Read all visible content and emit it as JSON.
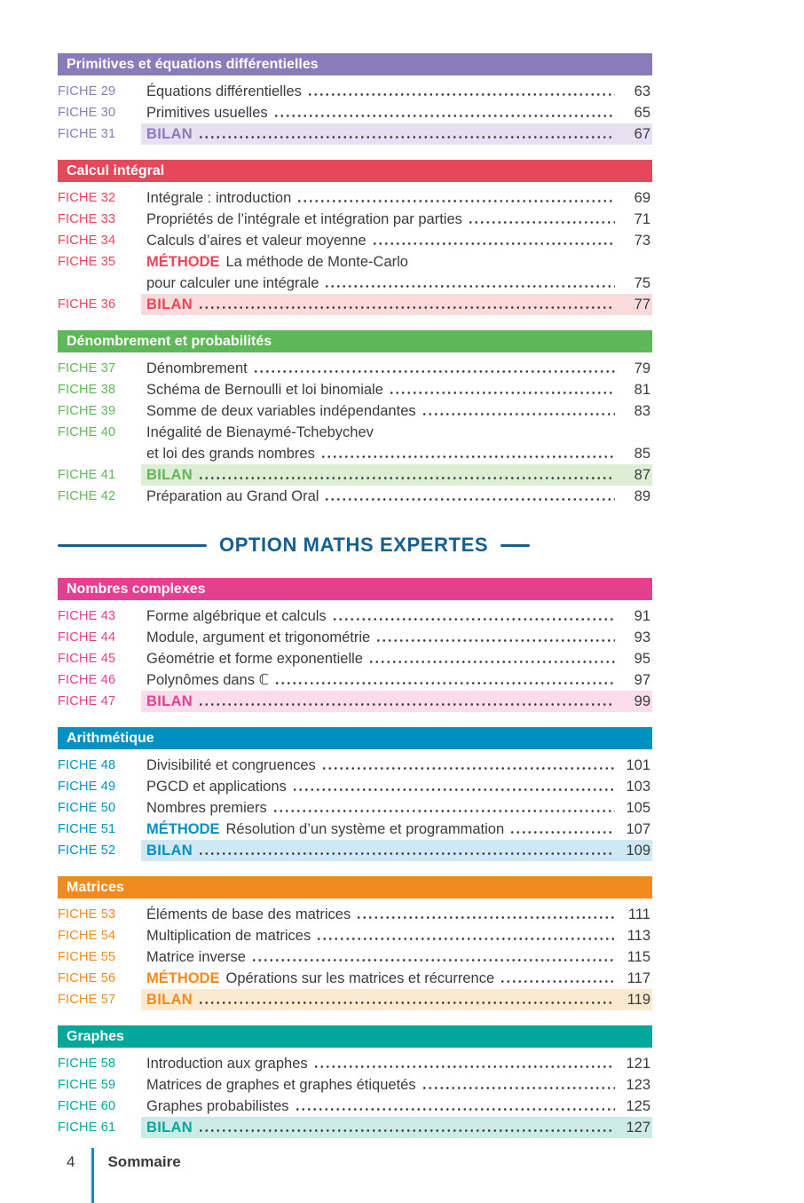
{
  "divider": {
    "title": "OPTION MATHS EXPERTES",
    "color": "#16608f",
    "after_section": 3
  },
  "footer": {
    "page_number": "4",
    "label": "Sommaire",
    "bar_color": "#0090c2"
  },
  "sections": [
    {
      "title": "Primitives et équations différentielles",
      "color": "#8a7bba",
      "tint": "#e6e1f2",
      "items": [
        {
          "fiche": "FICHE 29",
          "lines": [
            "Équations différentielles"
          ],
          "page": "63"
        },
        {
          "fiche": "FICHE 30",
          "lines": [
            "Primitives usuelles"
          ],
          "page": "65"
        },
        {
          "fiche": "FICHE 31",
          "bilan": "BILAN",
          "page": "67"
        }
      ]
    },
    {
      "title": "Calcul intégral",
      "color": "#e6475a",
      "tint": "#fadbdb",
      "items": [
        {
          "fiche": "FICHE 32",
          "lines": [
            "Intégrale : introduction"
          ],
          "page": "69"
        },
        {
          "fiche": "FICHE 33",
          "lines": [
            "Propriétés de l’intégrale et intégration par parties"
          ],
          "page": "71"
        },
        {
          "fiche": "FICHE 34",
          "lines": [
            "Calculs d’aires et valeur moyenne"
          ],
          "page": "73"
        },
        {
          "fiche": "FICHE 35",
          "methode": "MÉTHODE",
          "lines": [
            "La méthode de Monte-Carlo",
            "pour calculer une intégrale"
          ],
          "page": "75"
        },
        {
          "fiche": "FICHE 36",
          "bilan": "BILAN",
          "page": "77"
        }
      ]
    },
    {
      "title": "Dénombrement et probabilités",
      "color": "#5fb857",
      "tint": "#dceed4",
      "items": [
        {
          "fiche": "FICHE 37",
          "lines": [
            "Dénombrement"
          ],
          "page": "79"
        },
        {
          "fiche": "FICHE 38",
          "lines": [
            "Schéma de Bernoulli et loi binomiale"
          ],
          "page": "81"
        },
        {
          "fiche": "FICHE 39",
          "lines": [
            "Somme de deux variables indépendantes"
          ],
          "page": "83"
        },
        {
          "fiche": "FICHE 40",
          "lines": [
            "Inégalité de Bienaymé-Tchebychev",
            "et loi des grands nombres"
          ],
          "page": "85"
        },
        {
          "fiche": "FICHE 41",
          "bilan": "BILAN",
          "page": "87"
        },
        {
          "fiche": "FICHE 42",
          "lines": [
            "Préparation au Grand Oral"
          ],
          "page": "89"
        }
      ]
    },
    {
      "title": "Nombres complexes",
      "color": "#e53f90",
      "tint": "#fadcea",
      "items": [
        {
          "fiche": "FICHE 43",
          "lines": [
            "Forme algébrique et calculs"
          ],
          "page": "91"
        },
        {
          "fiche": "FICHE 44",
          "lines": [
            "Module, argument et trigonométrie"
          ],
          "page": "93"
        },
        {
          "fiche": "FICHE 45",
          "lines": [
            "Géométrie et forme exponentielle"
          ],
          "page": "95"
        },
        {
          "fiche": "FICHE 46",
          "lines": [
            "Polynômes dans ℂ"
          ],
          "page": "97"
        },
        {
          "fiche": "FICHE 47",
          "bilan": "BILAN",
          "page": "99"
        }
      ]
    },
    {
      "title": "Arithmétique",
      "color": "#0090c2",
      "tint": "#cfe9f4",
      "items": [
        {
          "fiche": "FICHE 48",
          "lines": [
            "Divisibilité et congruences"
          ],
          "page": "101"
        },
        {
          "fiche": "FICHE 49",
          "lines": [
            "PGCD et applications"
          ],
          "page": "103"
        },
        {
          "fiche": "FICHE 50",
          "lines": [
            "Nombres premiers"
          ],
          "page": "105"
        },
        {
          "fiche": "FICHE 51",
          "methode": "MÉTHODE",
          "lines": [
            "Résolution d’un système et programmation"
          ],
          "page": "107"
        },
        {
          "fiche": "FICHE 52",
          "bilan": "BILAN",
          "page": "109"
        }
      ]
    },
    {
      "title": "Matrices",
      "color": "#f18b1f",
      "tint": "#fde9d0",
      "items": [
        {
          "fiche": "FICHE 53",
          "lines": [
            "Éléments de base des matrices"
          ],
          "page": "111"
        },
        {
          "fiche": "FICHE 54",
          "lines": [
            "Multiplication de matrices"
          ],
          "page": "113"
        },
        {
          "fiche": "FICHE 55",
          "lines": [
            "Matrice inverse"
          ],
          "page": "115"
        },
        {
          "fiche": "FICHE 56",
          "methode": "MÉTHODE",
          "lines": [
            "Opérations sur les matrices et récurrence"
          ],
          "page": "117"
        },
        {
          "fiche": "FICHE 57",
          "bilan": "BILAN",
          "page": "119"
        }
      ]
    },
    {
      "title": "Graphes",
      "color": "#00a79a",
      "tint": "#ccebe7",
      "items": [
        {
          "fiche": "FICHE 58",
          "lines": [
            "Introduction aux graphes"
          ],
          "page": "121"
        },
        {
          "fiche": "FICHE 59",
          "lines": [
            "Matrices de graphes et graphes étiquetés"
          ],
          "page": "123"
        },
        {
          "fiche": "FICHE 60",
          "lines": [
            "Graphes probabilistes"
          ],
          "page": "125"
        },
        {
          "fiche": "FICHE 61",
          "bilan": "BILAN",
          "page": "127"
        }
      ]
    }
  ]
}
